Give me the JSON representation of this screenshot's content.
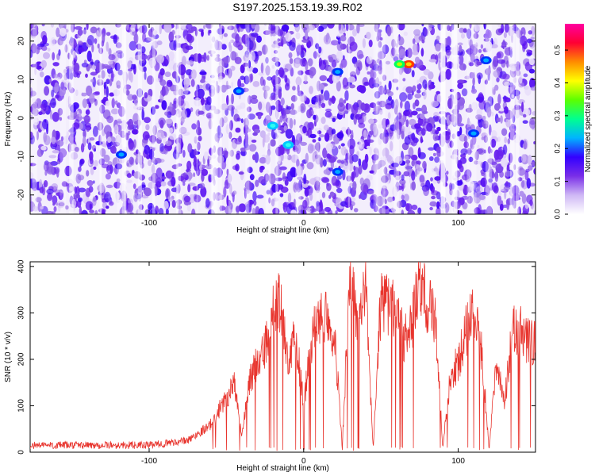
{
  "title": "S197.2025.153.19.39.R02",
  "chart_data": [
    {
      "type": "heatmap",
      "title": "S197.2025.153.19.39.R02",
      "xlabel": "Height of straight line (km)",
      "ylabel": "Frequency (Hz)",
      "xlim": [
        -177,
        150
      ],
      "ylim": [
        -25,
        24.5
      ],
      "xticks": [
        -100,
        0,
        100
      ],
      "yticks": [
        -20,
        -10,
        0,
        10,
        20
      ],
      "colorbar": {
        "label": "Normalized spectral amplitude",
        "range": [
          0,
          0.58
        ],
        "ticks": [
          "0.0",
          "0.1",
          "0.2",
          "0.3",
          "0.4",
          "0.5"
        ],
        "colors": [
          "#ffffff",
          "#cfb8f5",
          "#7a2fe8",
          "#3300ff",
          "#00b4ff",
          "#00ff90",
          "#5cff00",
          "#ffff00",
          "#ff8c00",
          "#ff0033",
          "#ff00a0"
        ]
      },
      "hotspots": [
        {
          "x": 68,
          "y": 14,
          "v": 0.55
        },
        {
          "x": 62,
          "y": 14,
          "v": 0.3
        },
        {
          "x": -20,
          "y": -2,
          "v": 0.2
        },
        {
          "x": -10,
          "y": -7,
          "v": 0.15
        },
        {
          "x": -118,
          "y": -9.5,
          "v": 0.12
        },
        {
          "x": 110,
          "y": -4,
          "v": 0.12
        },
        {
          "x": 118,
          "y": 15,
          "v": 0.1
        },
        {
          "x": 22,
          "y": 12,
          "v": 0.1
        },
        {
          "x": 22,
          "y": -14,
          "v": 0.1
        },
        {
          "x": -42,
          "y": 7,
          "v": 0.1
        }
      ]
    },
    {
      "type": "line",
      "xlabel": "Height of straight line (km)",
      "ylabel": "SNR (10 * v/v)",
      "xlim": [
        -177,
        150
      ],
      "ylim": [
        0,
        410
      ],
      "xticks": [
        -100,
        0,
        100
      ],
      "yticks": [
        0,
        100,
        200,
        300,
        400
      ],
      "line_color": "#e8352e",
      "series": [
        {
          "x": [
            -177,
            -140,
            -100,
            -75,
            -60,
            -50,
            -45,
            -40,
            -35,
            -30,
            -25,
            -20,
            -15,
            -10,
            -5,
            0,
            5,
            10,
            15,
            20,
            25,
            30,
            35,
            40,
            45,
            50,
            55,
            60,
            65,
            70,
            75,
            80,
            85,
            90,
            95,
            100,
            105,
            110,
            115,
            120,
            125,
            130,
            135,
            140,
            145,
            150
          ],
          "y": [
            15,
            15,
            15,
            25,
            60,
            120,
            150,
            30,
            160,
            190,
            220,
            300,
            330,
            200,
            250,
            100,
            240,
            290,
            300,
            250,
            10,
            390,
            260,
            350,
            10,
            330,
            320,
            300,
            240,
            270,
            370,
            320,
            290,
            10,
            170,
            190,
            260,
            300,
            220,
            10,
            200,
            110,
            260,
            260,
            240,
            240
          ]
        }
      ]
    }
  ]
}
